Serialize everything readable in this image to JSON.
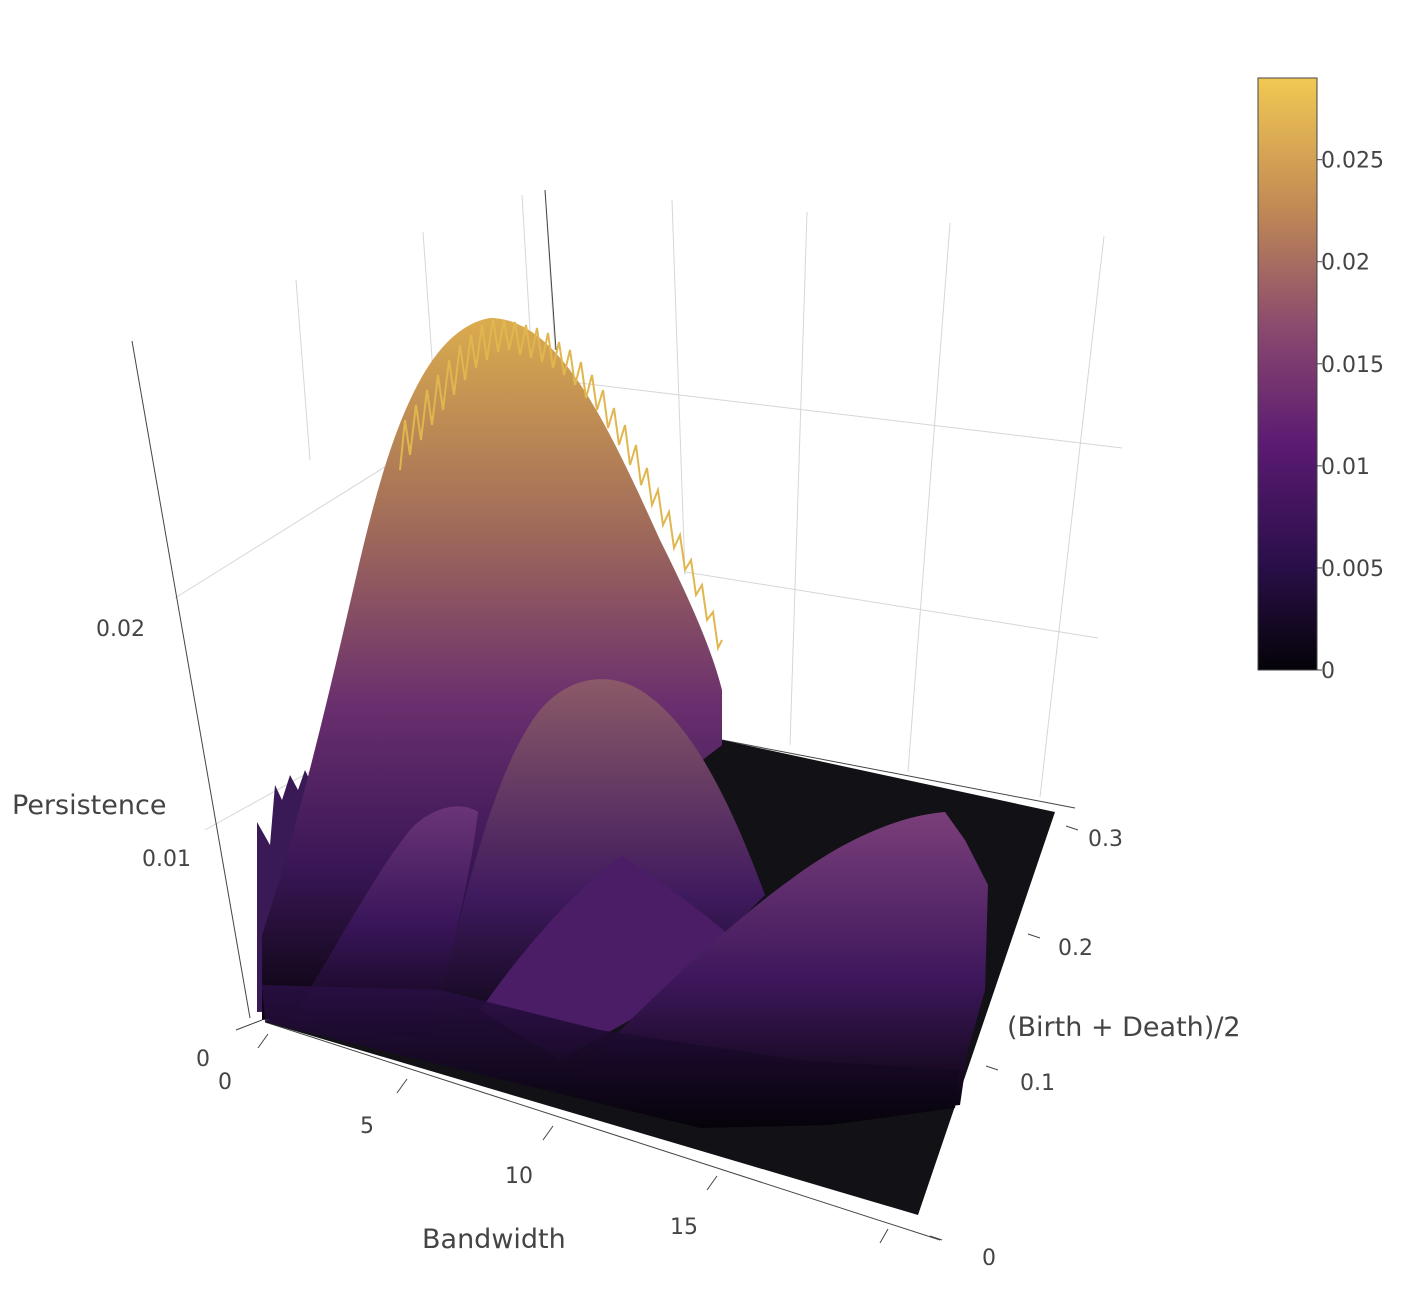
{
  "chart_data": {
    "type": "surface",
    "title": "",
    "xlabel": "Bandwidth",
    "ylabel": "(Birth + Death)/2",
    "zlabel": "Persistence",
    "x_range": [
      0,
      20
    ],
    "y_range": [
      0,
      0.33
    ],
    "z_range": [
      0,
      0.029
    ],
    "x_ticks": [
      "0",
      "5",
      "10",
      "15"
    ],
    "y_ticks": [
      "0",
      "0.1",
      "0.2",
      "0.3"
    ],
    "z_ticks": [
      "0",
      "0.01",
      "0.02"
    ],
    "colorscale": [
      "#0d0887",
      "#2c0b3f",
      "#5a1670",
      "#8a4d7d",
      "#b97c5b",
      "#f0c451"
    ],
    "colorbar": {
      "ticks": [
        "0",
        "0.005",
        "0.01",
        "0.015",
        "0.02",
        "0.025"
      ],
      "tick_values": [
        0,
        0.005,
        0.01,
        0.015,
        0.02,
        0.025
      ],
      "range": [
        0,
        0.029
      ]
    },
    "peaks": [
      {
        "x": 4.0,
        "y": 0.245,
        "z": 0.0285
      },
      {
        "x": 7.5,
        "y": 0.2,
        "z": 0.019
      },
      {
        "x": 4.5,
        "y": 0.13,
        "z": 0.0135
      },
      {
        "x": 11.0,
        "y": 0.18,
        "z": 0.0115
      },
      {
        "x": 16.5,
        "y": 0.23,
        "z": 0.014
      }
    ]
  }
}
